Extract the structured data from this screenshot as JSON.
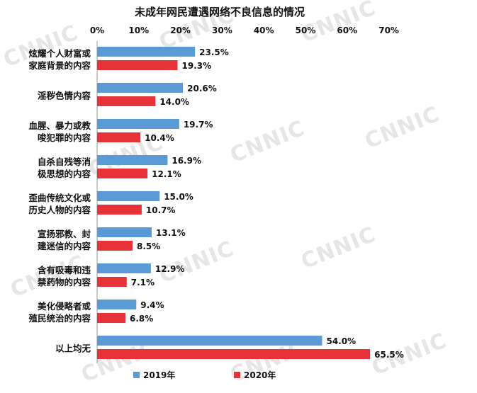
{
  "watermark": "CNNIC",
  "chart_data": {
    "type": "bar",
    "orientation": "horizontal",
    "title": "未成年网民遭遇网络不良信息的情况",
    "x_axis_position": "top",
    "xlim": [
      0,
      70
    ],
    "x_ticks": [
      "0%",
      "10%",
      "20%",
      "30%",
      "40%",
      "50%",
      "60%",
      "70%"
    ],
    "grid": false,
    "legend_position": "bottom",
    "categories": [
      [
        "炫耀个人财富或",
        "家庭背景的内容"
      ],
      [
        "淫秽色情内容"
      ],
      [
        "血腥、暴力或教",
        "唆犯罪的内容"
      ],
      [
        "自杀自残等消",
        "极思想的内容"
      ],
      [
        "歪曲传统文化或",
        "历史人物的内容"
      ],
      [
        "宣扬邪教、封",
        "建迷信的内容"
      ],
      [
        "含有吸毒和违",
        "禁药物的内容"
      ],
      [
        "美化侵略者或",
        "殖民统治的内容"
      ],
      [
        "以上均无"
      ]
    ],
    "series": [
      {
        "name": "2019年",
        "color": "#5b9bd5",
        "values": [
          23.5,
          20.6,
          19.7,
          16.9,
          15.0,
          13.1,
          12.9,
          9.4,
          54.0
        ],
        "labels": [
          "23.5%",
          "20.6%",
          "19.7%",
          "16.9%",
          "15.0%",
          "13.1%",
          "12.9%",
          "9.4%",
          "54.0%"
        ]
      },
      {
        "name": "2020年",
        "color": "#e8323a",
        "values": [
          19.3,
          14.0,
          10.4,
          12.1,
          10.7,
          8.5,
          7.1,
          6.8,
          65.5
        ],
        "labels": [
          "19.3%",
          "14.0%",
          "10.4%",
          "12.1%",
          "10.7%",
          "8.5%",
          "7.1%",
          "6.8%",
          "65.5%"
        ]
      }
    ]
  }
}
